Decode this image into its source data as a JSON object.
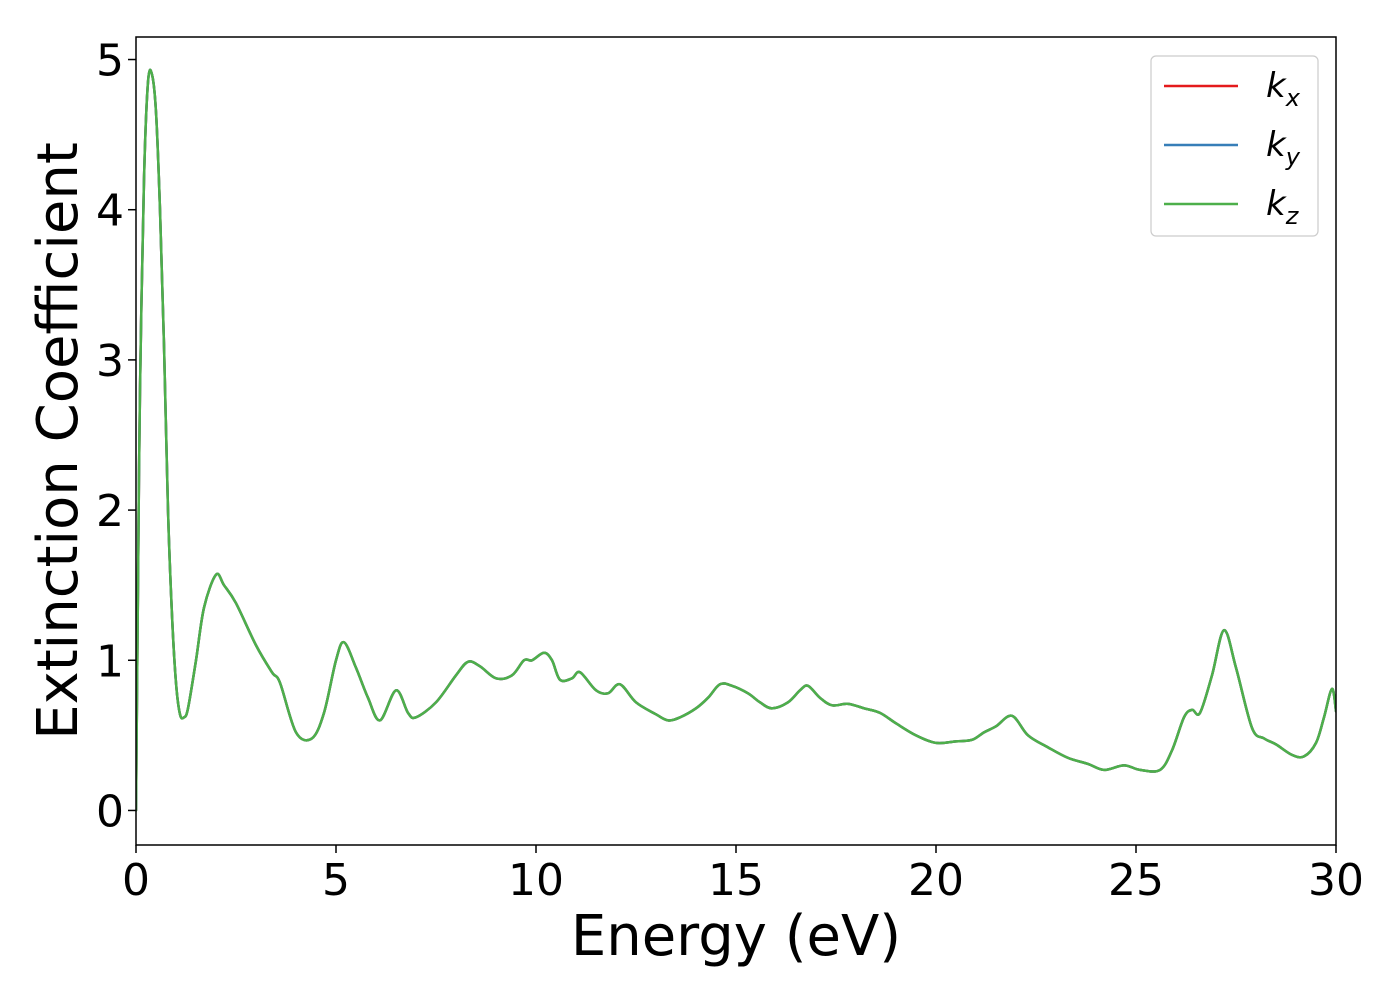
{
  "chart_data": {
    "type": "line",
    "title": "",
    "xlabel": "Energy (eV)",
    "ylabel": "Extinction Coefficient",
    "xlim": [
      0,
      30
    ],
    "ylim": [
      -0.23,
      5.15
    ],
    "xticks": [
      0,
      5,
      10,
      15,
      20,
      25,
      30
    ],
    "yticks": [
      0,
      1,
      2,
      3,
      4,
      5
    ],
    "grid": false,
    "legend_position": "top-right",
    "series": [
      {
        "name": "k_x",
        "label_main": "k",
        "label_sub": "x",
        "color": "#e41a1c",
        "x": [
          0.0,
          0.05,
          0.1,
          0.2,
          0.3,
          0.4,
          0.5,
          0.6,
          0.7,
          0.8,
          0.9,
          1.0,
          1.1,
          1.2,
          1.3,
          1.5,
          1.7,
          2.0,
          2.2,
          2.5,
          3.0,
          3.4,
          3.6,
          4.0,
          4.4,
          4.7,
          5.0,
          5.2,
          5.5,
          5.8,
          6.1,
          6.5,
          6.8,
          7.0,
          7.5,
          8.0,
          8.3,
          8.6,
          9.0,
          9.4,
          9.7,
          9.9,
          10.2,
          10.4,
          10.6,
          10.9,
          11.1,
          11.5,
          11.8,
          12.1,
          12.5,
          13.0,
          13.3,
          13.6,
          14.0,
          14.3,
          14.6,
          14.9,
          15.3,
          15.6,
          15.9,
          16.3,
          16.6,
          16.8,
          17.1,
          17.4,
          17.8,
          18.2,
          18.6,
          19.0,
          19.5,
          20.0,
          20.5,
          20.9,
          21.2,
          21.5,
          21.9,
          22.3,
          22.8,
          23.3,
          23.8,
          24.2,
          24.7,
          25.1,
          25.6,
          25.9,
          26.2,
          26.4,
          26.6,
          26.9,
          27.2,
          27.5,
          27.9,
          28.2,
          28.5,
          28.9,
          29.2,
          29.5,
          29.7,
          29.9,
          30.0
        ],
        "y": [
          0.0,
          1.5,
          2.8,
          4.2,
          4.85,
          4.9,
          4.65,
          4.0,
          3.1,
          2.0,
          1.3,
          0.85,
          0.64,
          0.62,
          0.68,
          1.0,
          1.35,
          1.57,
          1.5,
          1.38,
          1.1,
          0.92,
          0.85,
          0.52,
          0.48,
          0.65,
          1.0,
          1.12,
          0.95,
          0.75,
          0.6,
          0.8,
          0.65,
          0.62,
          0.72,
          0.9,
          0.99,
          0.96,
          0.88,
          0.9,
          1.0,
          1.0,
          1.05,
          1.0,
          0.87,
          0.88,
          0.92,
          0.8,
          0.78,
          0.84,
          0.72,
          0.64,
          0.6,
          0.62,
          0.68,
          0.75,
          0.84,
          0.83,
          0.78,
          0.72,
          0.68,
          0.72,
          0.8,
          0.83,
          0.75,
          0.7,
          0.71,
          0.68,
          0.65,
          0.58,
          0.5,
          0.45,
          0.46,
          0.47,
          0.52,
          0.56,
          0.63,
          0.5,
          0.42,
          0.35,
          0.31,
          0.27,
          0.3,
          0.27,
          0.27,
          0.4,
          0.62,
          0.67,
          0.65,
          0.9,
          1.2,
          0.95,
          0.55,
          0.48,
          0.44,
          0.37,
          0.36,
          0.45,
          0.62,
          0.81,
          0.66
        ]
      },
      {
        "name": "k_y",
        "label_main": "k",
        "label_sub": "y",
        "color": "#377eb8",
        "x": [
          0.0,
          0.05,
          0.1,
          0.2,
          0.3,
          0.4,
          0.5,
          0.6,
          0.7,
          0.8,
          0.9,
          1.0,
          1.1,
          1.2,
          1.3,
          1.5,
          1.7,
          2.0,
          2.2,
          2.5,
          3.0,
          3.4,
          3.6,
          4.0,
          4.4,
          4.7,
          5.0,
          5.2,
          5.5,
          5.8,
          6.1,
          6.5,
          6.8,
          7.0,
          7.5,
          8.0,
          8.3,
          8.6,
          9.0,
          9.4,
          9.7,
          9.9,
          10.2,
          10.4,
          10.6,
          10.9,
          11.1,
          11.5,
          11.8,
          12.1,
          12.5,
          13.0,
          13.3,
          13.6,
          14.0,
          14.3,
          14.6,
          14.9,
          15.3,
          15.6,
          15.9,
          16.3,
          16.6,
          16.8,
          17.1,
          17.4,
          17.8,
          18.2,
          18.6,
          19.0,
          19.5,
          20.0,
          20.5,
          20.9,
          21.2,
          21.5,
          21.9,
          22.3,
          22.8,
          23.3,
          23.8,
          24.2,
          24.7,
          25.1,
          25.6,
          25.9,
          26.2,
          26.4,
          26.6,
          26.9,
          27.2,
          27.5,
          27.9,
          28.2,
          28.5,
          28.9,
          29.2,
          29.5,
          29.7,
          29.9,
          30.0
        ],
        "y": [
          0.0,
          1.5,
          2.8,
          4.2,
          4.85,
          4.9,
          4.65,
          4.0,
          3.1,
          2.0,
          1.3,
          0.85,
          0.64,
          0.62,
          0.68,
          1.0,
          1.35,
          1.57,
          1.5,
          1.38,
          1.1,
          0.92,
          0.85,
          0.52,
          0.48,
          0.65,
          1.0,
          1.12,
          0.95,
          0.75,
          0.6,
          0.8,
          0.65,
          0.62,
          0.72,
          0.9,
          0.99,
          0.96,
          0.88,
          0.9,
          1.0,
          1.0,
          1.05,
          1.0,
          0.87,
          0.88,
          0.92,
          0.8,
          0.78,
          0.84,
          0.72,
          0.64,
          0.6,
          0.62,
          0.68,
          0.75,
          0.84,
          0.83,
          0.78,
          0.72,
          0.68,
          0.72,
          0.8,
          0.83,
          0.75,
          0.7,
          0.71,
          0.68,
          0.65,
          0.58,
          0.5,
          0.45,
          0.46,
          0.47,
          0.52,
          0.56,
          0.63,
          0.5,
          0.42,
          0.35,
          0.31,
          0.27,
          0.3,
          0.27,
          0.27,
          0.4,
          0.62,
          0.67,
          0.65,
          0.9,
          1.2,
          0.95,
          0.55,
          0.48,
          0.44,
          0.37,
          0.36,
          0.45,
          0.62,
          0.81,
          0.66
        ]
      },
      {
        "name": "k_z",
        "label_main": "k",
        "label_sub": "z",
        "color": "#4daf4a",
        "x": [
          0.0,
          0.05,
          0.1,
          0.2,
          0.3,
          0.4,
          0.5,
          0.6,
          0.7,
          0.8,
          0.9,
          1.0,
          1.1,
          1.2,
          1.3,
          1.5,
          1.7,
          2.0,
          2.2,
          2.5,
          3.0,
          3.4,
          3.6,
          4.0,
          4.4,
          4.7,
          5.0,
          5.2,
          5.5,
          5.8,
          6.1,
          6.5,
          6.8,
          7.0,
          7.5,
          8.0,
          8.3,
          8.6,
          9.0,
          9.4,
          9.7,
          9.9,
          10.2,
          10.4,
          10.6,
          10.9,
          11.1,
          11.5,
          11.8,
          12.1,
          12.5,
          13.0,
          13.3,
          13.6,
          14.0,
          14.3,
          14.6,
          14.9,
          15.3,
          15.6,
          15.9,
          16.3,
          16.6,
          16.8,
          17.1,
          17.4,
          17.8,
          18.2,
          18.6,
          19.0,
          19.5,
          20.0,
          20.5,
          20.9,
          21.2,
          21.5,
          21.9,
          22.3,
          22.8,
          23.3,
          23.8,
          24.2,
          24.7,
          25.1,
          25.6,
          25.9,
          26.2,
          26.4,
          26.6,
          26.9,
          27.2,
          27.5,
          27.9,
          28.2,
          28.5,
          28.9,
          29.2,
          29.5,
          29.7,
          29.9,
          30.0
        ],
        "y": [
          0.0,
          1.5,
          2.8,
          4.2,
          4.85,
          4.9,
          4.65,
          4.0,
          3.1,
          2.0,
          1.3,
          0.85,
          0.64,
          0.62,
          0.68,
          1.0,
          1.35,
          1.57,
          1.5,
          1.38,
          1.1,
          0.92,
          0.85,
          0.52,
          0.48,
          0.65,
          1.0,
          1.12,
          0.95,
          0.75,
          0.6,
          0.8,
          0.65,
          0.62,
          0.72,
          0.9,
          0.99,
          0.96,
          0.88,
          0.9,
          1.0,
          1.0,
          1.05,
          1.0,
          0.87,
          0.88,
          0.92,
          0.8,
          0.78,
          0.84,
          0.72,
          0.64,
          0.6,
          0.62,
          0.68,
          0.75,
          0.84,
          0.83,
          0.78,
          0.72,
          0.68,
          0.72,
          0.8,
          0.83,
          0.75,
          0.7,
          0.71,
          0.68,
          0.65,
          0.58,
          0.5,
          0.45,
          0.46,
          0.47,
          0.52,
          0.56,
          0.63,
          0.5,
          0.42,
          0.35,
          0.31,
          0.27,
          0.3,
          0.27,
          0.27,
          0.4,
          0.62,
          0.67,
          0.65,
          0.9,
          1.2,
          0.95,
          0.55,
          0.48,
          0.44,
          0.37,
          0.36,
          0.45,
          0.62,
          0.81,
          0.66
        ]
      }
    ]
  }
}
